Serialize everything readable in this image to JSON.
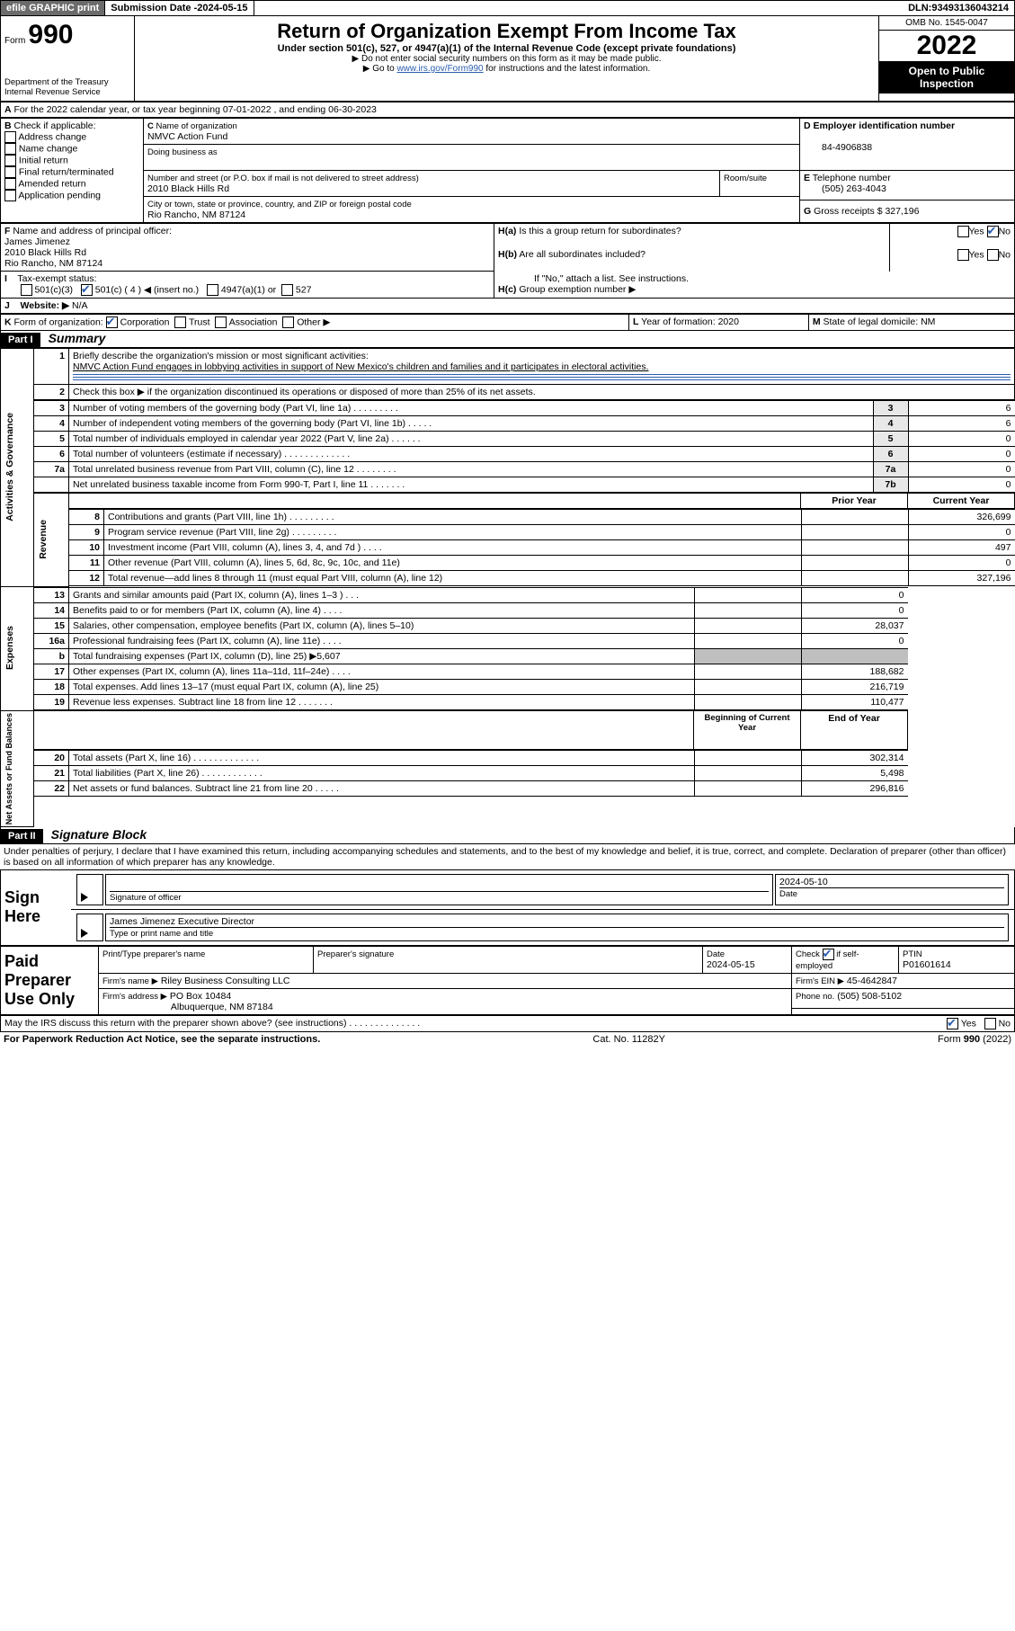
{
  "topbar": {
    "efile": "efile GRAPHIC print",
    "submission_label": "Submission Date - ",
    "submission_date": "2024-05-15",
    "dln_label": "DLN: ",
    "dln": "93493136043214"
  },
  "header": {
    "form_prefix": "Form",
    "form_no": "990",
    "dept": "Department of the Treasury",
    "irs": "Internal Revenue Service",
    "title": "Return of Organization Exempt From Income Tax",
    "sub1": "Under section 501(c), 527, or 4947(a)(1) of the Internal Revenue Code (except private foundations)",
    "sub2": "▶ Do not enter social security numbers on this form as it may be made public.",
    "sub3_pre": "▶ Go to ",
    "sub3_link": "www.irs.gov/Form990",
    "sub3_post": " for instructions and the latest information.",
    "omb": "OMB No. 1545-0047",
    "year": "2022",
    "inspect": "Open to Public Inspection"
  },
  "lineA": "For the 2022 calendar year, or tax year beginning 07-01-2022    , and ending 06-30-2023",
  "boxB": {
    "label": "Check if applicable:",
    "opts": [
      "Address change",
      "Name change",
      "Initial return",
      "Final return/terminated",
      "Amended return",
      "Application pending"
    ]
  },
  "boxC": {
    "name_label": "Name of organization",
    "name": "NMVC Action Fund",
    "dba_label": "Doing business as",
    "street_label": "Number and street (or P.O. box if mail is not delivered to street address)",
    "room_label": "Room/suite",
    "street": "2010 Black Hills Rd",
    "city_label": "City or town, state or province, country, and ZIP or foreign postal code",
    "city": "Rio Rancho, NM  87124"
  },
  "boxD": {
    "label": "Employer identification number",
    "val": "84-4906838"
  },
  "boxE": {
    "label": "Telephone number",
    "val": "(505) 263-4043"
  },
  "boxG": {
    "label": "Gross receipts $",
    "val": "327,196"
  },
  "boxF": {
    "label": "Name and address of principal officer:",
    "name": "James Jimenez",
    "addr1": "2010 Black Hills Rd",
    "addr2": "Rio Rancho, NM  87124"
  },
  "boxH": {
    "a": "Is this a group return for subordinates?",
    "b": "Are all subordinates included?",
    "note": "If \"No,\" attach a list. See instructions.",
    "c": "Group exemption number ▶"
  },
  "boxI": {
    "label": "Tax-exempt status:",
    "opts": [
      "501(c)(3)",
      "501(c) ( 4 ) ◀ (insert no.)",
      "4947(a)(1) or",
      "527"
    ]
  },
  "boxJ": {
    "label": "Website: ▶",
    "val": "N/A"
  },
  "boxK": {
    "label": "Form of organization:",
    "opts": [
      "Corporation",
      "Trust",
      "Association",
      "Other ▶"
    ]
  },
  "boxL": {
    "label": "Year of formation:",
    "val": "2020"
  },
  "boxM": {
    "label": "State of legal domicile:",
    "val": "NM"
  },
  "part1": {
    "bar": "Part I",
    "title": "Summary",
    "q1_label": "Briefly describe the organization's mission or most significant activities:",
    "q1_text": "NMVC Action Fund engages in lobbying activities in support of New Mexico's children and families and it participates in electoral activities.",
    "q2": "Check this box ▶        if the organization discontinued its operations or disposed of more than 25% of its net assets.",
    "rows_gov": [
      {
        "n": "3",
        "t": "Number of voting members of the governing body (Part VI, line 1a)  .   .   .   .   .   .   .   .   .",
        "k": "3",
        "v": "6"
      },
      {
        "n": "4",
        "t": "Number of independent voting members of the governing body (Part VI, line 1b)  .   .   .   .   .",
        "k": "4",
        "v": "6"
      },
      {
        "n": "5",
        "t": "Total number of individuals employed in calendar year 2022 (Part V, line 2a)  .   .   .   .   .   .",
        "k": "5",
        "v": "0"
      },
      {
        "n": "6",
        "t": "Total number of volunteers (estimate if necessary)  .   .   .   .   .   .   .   .   .   .   .   .   .",
        "k": "6",
        "v": "0"
      },
      {
        "n": "7a",
        "t": "Total unrelated business revenue from Part VIII, column (C), line 12  .   .   .   .   .   .   .   .",
        "k": "7a",
        "v": "0"
      },
      {
        "n": "",
        "t": "Net unrelated business taxable income from Form 990-T, Part I, line 11  .   .   .   .   .   .   .",
        "k": "7b",
        "v": "0"
      }
    ],
    "hdr_prior": "Prior Year",
    "hdr_curr": "Current Year",
    "rows_rev": [
      {
        "n": "8",
        "t": "Contributions and grants (Part VIII, line 1h)  .   .   .   .   .   .   .   .   .",
        "p": "",
        "c": "326,699"
      },
      {
        "n": "9",
        "t": "Program service revenue (Part VIII, line 2g)  .   .   .   .   .   .   .   .   .",
        "p": "",
        "c": "0"
      },
      {
        "n": "10",
        "t": "Investment income (Part VIII, column (A), lines 3, 4, and 7d )  .   .   .   .",
        "p": "",
        "c": "497"
      },
      {
        "n": "11",
        "t": "Other revenue (Part VIII, column (A), lines 5, 6d, 8c, 9c, 10c, and 11e)",
        "p": "",
        "c": "0"
      },
      {
        "n": "12",
        "t": "Total revenue—add lines 8 through 11 (must equal Part VIII, column (A), line 12)",
        "p": "",
        "c": "327,196"
      }
    ],
    "rows_exp": [
      {
        "n": "13",
        "t": "Grants and similar amounts paid (Part IX, column (A), lines 1–3 )  .   .   .",
        "p": "",
        "c": "0"
      },
      {
        "n": "14",
        "t": "Benefits paid to or for members (Part IX, column (A), line 4)  .   .   .   .",
        "p": "",
        "c": "0"
      },
      {
        "n": "15",
        "t": "Salaries, other compensation, employee benefits (Part IX, column (A), lines 5–10)",
        "p": "",
        "c": "28,037"
      },
      {
        "n": "16a",
        "t": "Professional fundraising fees (Part IX, column (A), line 11e)  .   .   .   .",
        "p": "",
        "c": "0"
      },
      {
        "n": "b",
        "t": "Total fundraising expenses (Part IX, column (D), line 25) ▶5,607",
        "p": "",
        "c": ""
      },
      {
        "n": "17",
        "t": "Other expenses (Part IX, column (A), lines 11a–11d, 11f–24e)  .   .   .   .",
        "p": "",
        "c": "188,682"
      },
      {
        "n": "18",
        "t": "Total expenses. Add lines 13–17 (must equal Part IX, column (A), line 25)",
        "p": "",
        "c": "216,719"
      },
      {
        "n": "19",
        "t": "Revenue less expenses. Subtract line 18 from line 12  .   .   .   .   .   .   .",
        "p": "",
        "c": "110,477"
      }
    ],
    "hdr_begin": "Beginning of Current Year",
    "hdr_end": "End of Year",
    "rows_net": [
      {
        "n": "20",
        "t": "Total assets (Part X, line 16)  .   .   .   .   .   .   .   .   .   .   .   .   .",
        "p": "",
        "c": "302,314"
      },
      {
        "n": "21",
        "t": "Total liabilities (Part X, line 26)  .   .   .   .   .   .   .   .   .   .   .   .",
        "p": "",
        "c": "5,498"
      },
      {
        "n": "22",
        "t": "Net assets or fund balances. Subtract line 21 from line 20  .   .   .   .   .",
        "p": "",
        "c": "296,816"
      }
    ],
    "vlabels": {
      "gov": "Activities & Governance",
      "rev": "Revenue",
      "exp": "Expenses",
      "net": "Net Assets or Fund Balances"
    }
  },
  "part2": {
    "bar": "Part II",
    "title": "Signature Block",
    "penalties": "Under penalties of perjury, I declare that I have examined this return, including accompanying schedules and statements, and to the best of my knowledge and belief, it is true, correct, and complete. Declaration of preparer (other than officer) is based on all information of which preparer has any knowledge.",
    "sign_here": "Sign Here",
    "sig_officer": "Signature of officer",
    "sig_date": "2024-05-10",
    "date_label": "Date",
    "officer_name": "James Jimenez  Executive Director",
    "officer_sub": "Type or print name and title",
    "paid": "Paid Preparer Use Only",
    "prep_name_h": "Print/Type preparer's name",
    "prep_sig_h": "Preparer's signature",
    "prep_date_h": "Date",
    "prep_date": "2024-05-15",
    "prep_check": "Check       if self-employed",
    "ptin_h": "PTIN",
    "ptin": "P01601614",
    "firm_name_l": "Firm's name    ▶",
    "firm_name": "Riley Business Consulting LLC",
    "firm_ein_l": "Firm's EIN ▶",
    "firm_ein": "45-4642847",
    "firm_addr_l": "Firm's address ▶",
    "firm_addr1": "PO Box 10484",
    "firm_addr2": "Albuquerque, NM  87184",
    "firm_phone_l": "Phone no.",
    "firm_phone": "(505) 508-5102",
    "discuss": "May the IRS discuss this return with the preparer shown above? (see instructions)  .   .   .   .   .   .   .   .   .   .   .   .   .   ."
  },
  "footer": {
    "left": "For Paperwork Reduction Act Notice, see the separate instructions.",
    "mid": "Cat. No. 11282Y",
    "right": "Form 990 (2022)"
  },
  "yn": {
    "yes": "Yes",
    "no": "No"
  }
}
